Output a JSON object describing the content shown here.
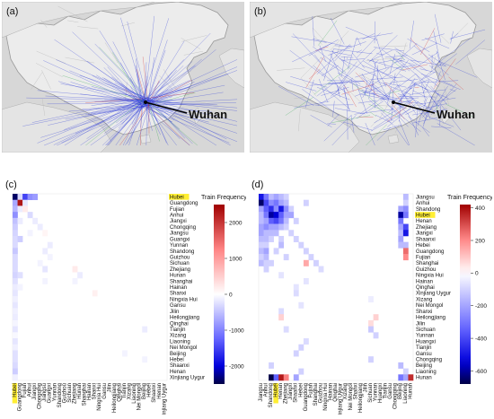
{
  "panels": {
    "a": {
      "label": "(a)",
      "city": "Wuhan"
    },
    "b": {
      "label": "(b)",
      "city": "Wuhan"
    },
    "c": {
      "label": "(c)"
    },
    "d": {
      "label": "(d)"
    }
  },
  "chart_data": [
    {
      "type": "heatmap",
      "panel": "c",
      "colorbar_title": "Train Frequency",
      "colorbar_ticks": [
        2000,
        1000,
        0,
        -1000,
        -2000
      ],
      "colorbar_range": [
        -2500,
        2500
      ],
      "highlight": "Hubei",
      "highlight_color": "#ffee33",
      "rows": [
        "Hubei",
        "Guangdong",
        "Fujian",
        "Anhui",
        "Jiangxi",
        "Chongqing",
        "Jiangsu",
        "Guangxi",
        "Yunnan",
        "Shandong",
        "Guizhou",
        "Sichuan",
        "Zhejiang",
        "Hunan",
        "Shanghai",
        "Hainan",
        "Shanxi",
        "Ningxia Hui",
        "Gansu",
        "Jilin",
        "Heilongjiang",
        "Qinghai",
        "Tianjin",
        "Xizang",
        "Liaoning",
        "Nei Mongol",
        "Beijing",
        "Hebei",
        "Shaanxi",
        "Henan",
        "Xinjiang Uygur"
      ],
      "columns": [
        "Hubei",
        "Guangdong",
        "Fujian",
        "Anhui",
        "Jiangxi",
        "Chongqing",
        "Jiangsu",
        "Guangxi",
        "Yunnan",
        "Shandong",
        "Guizhou",
        "Sichuan",
        "Zhejiang",
        "Hunan",
        "Shanghai",
        "Hainan",
        "Shanxi",
        "Ningxia Hui",
        "Gansu",
        "Jilin",
        "Heilongjiang",
        "Qinghai",
        "Tianjin",
        "Xizang",
        "Liaoning",
        "Nei Mongol",
        "Beijing",
        "Hebei",
        "Shaanxi",
        "Henan",
        "Xinjiang Uygur"
      ],
      "cells": [
        [
          0,
          0,
          -2400
        ],
        [
          0,
          1,
          -300
        ],
        [
          0,
          2,
          -1500
        ],
        [
          0,
          3,
          -900
        ],
        [
          0,
          4,
          -800
        ],
        [
          1,
          0,
          -700
        ],
        [
          1,
          1,
          2300
        ],
        [
          1,
          2,
          -200
        ],
        [
          2,
          0,
          -600
        ],
        [
          2,
          1,
          -150
        ],
        [
          2,
          2,
          200
        ],
        [
          3,
          0,
          -900
        ],
        [
          3,
          3,
          -300
        ],
        [
          4,
          0,
          -500
        ],
        [
          4,
          1,
          -150
        ],
        [
          4,
          4,
          -150
        ],
        [
          5,
          0,
          -400
        ],
        [
          5,
          5,
          -150
        ],
        [
          6,
          0,
          -350
        ],
        [
          6,
          3,
          -100
        ],
        [
          6,
          6,
          100
        ],
        [
          7,
          0,
          -300
        ],
        [
          7,
          1,
          -400
        ],
        [
          8,
          0,
          -300
        ],
        [
          8,
          7,
          -150
        ],
        [
          9,
          0,
          -450
        ],
        [
          9,
          6,
          -150
        ],
        [
          10,
          0,
          -300
        ],
        [
          10,
          7,
          -100
        ],
        [
          11,
          0,
          -300
        ],
        [
          11,
          5,
          -100
        ],
        [
          12,
          0,
          -300
        ],
        [
          12,
          6,
          -200
        ],
        [
          12,
          12,
          200
        ],
        [
          13,
          0,
          -350
        ],
        [
          13,
          1,
          -250
        ],
        [
          13,
          13,
          -150
        ],
        [
          14,
          0,
          -250
        ],
        [
          14,
          6,
          -100
        ],
        [
          14,
          12,
          -100
        ],
        [
          15,
          0,
          -150
        ],
        [
          15,
          1,
          -100
        ],
        [
          16,
          0,
          -200
        ],
        [
          16,
          16,
          150
        ],
        [
          17,
          0,
          -120
        ],
        [
          18,
          0,
          -200
        ],
        [
          19,
          0,
          -120
        ],
        [
          20,
          0,
          -150
        ],
        [
          21,
          0,
          -80
        ],
        [
          22,
          0,
          -200
        ],
        [
          22,
          26,
          -150
        ],
        [
          23,
          0,
          -60
        ],
        [
          24,
          0,
          -200
        ],
        [
          25,
          0,
          -120
        ],
        [
          26,
          0,
          -250
        ],
        [
          26,
          22,
          -100
        ],
        [
          27,
          0,
          -250
        ],
        [
          27,
          26,
          -100
        ],
        [
          28,
          0,
          -300
        ],
        [
          29,
          0,
          -400
        ],
        [
          30,
          0,
          -120
        ]
      ]
    },
    {
      "type": "heatmap",
      "panel": "d",
      "colorbar_title": "Train Frequency",
      "colorbar_ticks": [
        400,
        200,
        0,
        -200,
        -400,
        -600
      ],
      "colorbar_range": [
        -680,
        420
      ],
      "highlight": "Hubei",
      "highlight_color": "#ffee33",
      "rows": [
        "Jiangsu",
        "Anhui",
        "Shandong",
        "Hubei",
        "Henan",
        "Zhejiang",
        "Jiangxi",
        "Shaanxi",
        "Hebei",
        "Guangdong",
        "Fujian",
        "Shanghai",
        "Guizhou",
        "Ningxia Hui",
        "Hainan",
        "Qinghai",
        "Xinjiang Uygur",
        "Xizang",
        "Nei Mongol",
        "Shanxi",
        "Heilongjiang",
        "Jilin",
        "Sichuan",
        "Yunnan",
        "Huangxi",
        "Tianjin",
        "Gansu",
        "Chongqing",
        "Beijing",
        "Liaoning",
        "Hunan"
      ],
      "columns": [
        "Jiangsu",
        "Anhui",
        "Shandong",
        "Hubei",
        "Henan",
        "Zhejiang",
        "Jiangxi",
        "Shaanxi",
        "Hebei",
        "Guangdong",
        "Fujian",
        "Shanghai",
        "Guizhou",
        "Ningxia Hui",
        "Hainan",
        "Qinghai",
        "Xinjiang Uygur",
        "Xizang",
        "Nei Mongol",
        "Shanxi",
        "Heilongjiang",
        "Jilin",
        "Sichuan",
        "Yunnan",
        "Huangxi",
        "Tianjin",
        "Gansu",
        "Chongqing",
        "Beijing",
        "Liaoning",
        "Hunan"
      ],
      "cells": [
        [
          0,
          0,
          -500
        ],
        [
          0,
          1,
          -300
        ],
        [
          0,
          2,
          -150
        ],
        [
          0,
          3,
          -200
        ],
        [
          0,
          4,
          -150
        ],
        [
          0,
          5,
          -100
        ],
        [
          0,
          29,
          -150
        ],
        [
          1,
          0,
          -650
        ],
        [
          1,
          1,
          -400
        ],
        [
          1,
          2,
          -250
        ],
        [
          1,
          3,
          -300
        ],
        [
          1,
          4,
          -200
        ],
        [
          1,
          5,
          -150
        ],
        [
          1,
          9,
          -100
        ],
        [
          1,
          29,
          -100
        ],
        [
          2,
          0,
          -200
        ],
        [
          2,
          1,
          -350
        ],
        [
          2,
          2,
          -450
        ],
        [
          2,
          3,
          -250
        ],
        [
          2,
          4,
          -500
        ],
        [
          2,
          5,
          -250
        ],
        [
          2,
          6,
          -100
        ],
        [
          2,
          28,
          -200
        ],
        [
          2,
          29,
          -250
        ],
        [
          3,
          0,
          -150
        ],
        [
          3,
          1,
          -300
        ],
        [
          3,
          2,
          -600
        ],
        [
          3,
          3,
          -550
        ],
        [
          3,
          4,
          -350
        ],
        [
          3,
          5,
          -200
        ],
        [
          3,
          6,
          -200
        ],
        [
          3,
          28,
          -600
        ],
        [
          3,
          29,
          -300
        ],
        [
          4,
          0,
          -150
        ],
        [
          4,
          1,
          -200
        ],
        [
          4,
          2,
          -350
        ],
        [
          4,
          3,
          -400
        ],
        [
          4,
          4,
          -300
        ],
        [
          4,
          5,
          -150
        ],
        [
          4,
          7,
          -100
        ],
        [
          4,
          28,
          -300
        ],
        [
          5,
          0,
          -200
        ],
        [
          5,
          1,
          -250
        ],
        [
          5,
          2,
          -200
        ],
        [
          5,
          3,
          -200
        ],
        [
          5,
          4,
          -150
        ],
        [
          5,
          5,
          -100
        ],
        [
          5,
          28,
          -200
        ],
        [
          5,
          29,
          -400
        ],
        [
          6,
          0,
          -200
        ],
        [
          6,
          1,
          -150
        ],
        [
          6,
          2,
          -150
        ],
        [
          6,
          3,
          -150
        ],
        [
          6,
          6,
          -100
        ],
        [
          6,
          28,
          -150
        ],
        [
          6,
          29,
          -500
        ],
        [
          7,
          0,
          -150
        ],
        [
          7,
          1,
          -150
        ],
        [
          7,
          2,
          -100
        ],
        [
          7,
          4,
          -100
        ],
        [
          7,
          7,
          -100
        ],
        [
          7,
          28,
          -200
        ],
        [
          8,
          0,
          -100
        ],
        [
          8,
          1,
          -100
        ],
        [
          8,
          4,
          -150
        ],
        [
          8,
          8,
          -100
        ],
        [
          8,
          28,
          -150
        ],
        [
          8,
          29,
          -150
        ],
        [
          9,
          0,
          -150
        ],
        [
          9,
          1,
          -200
        ],
        [
          9,
          3,
          -100
        ],
        [
          9,
          9,
          -100
        ],
        [
          9,
          29,
          250
        ],
        [
          10,
          0,
          -100
        ],
        [
          10,
          1,
          -150
        ],
        [
          10,
          5,
          -100
        ],
        [
          10,
          10,
          -100
        ],
        [
          10,
          29,
          200
        ],
        [
          11,
          0,
          -150
        ],
        [
          11,
          1,
          -100
        ],
        [
          11,
          2,
          -100
        ],
        [
          11,
          9,
          150
        ],
        [
          11,
          11,
          -100
        ],
        [
          12,
          1,
          -100
        ],
        [
          12,
          12,
          -80
        ],
        [
          13,
          4,
          -60
        ],
        [
          14,
          9,
          -60
        ],
        [
          15,
          7,
          -60
        ],
        [
          16,
          7,
          -80
        ],
        [
          17,
          22,
          -40
        ],
        [
          18,
          8,
          -60
        ],
        [
          19,
          4,
          -80
        ],
        [
          20,
          4,
          80
        ],
        [
          20,
          23,
          80
        ],
        [
          21,
          22,
          60
        ],
        [
          22,
          5,
          -80
        ],
        [
          22,
          22,
          -120
        ],
        [
          23,
          23,
          -100
        ],
        [
          24,
          9,
          -80
        ],
        [
          25,
          8,
          -100
        ],
        [
          26,
          7,
          -100
        ],
        [
          27,
          22,
          -100
        ],
        [
          28,
          2,
          -100
        ],
        [
          28,
          28,
          -150
        ],
        [
          29,
          8,
          -100
        ],
        [
          29,
          29,
          -100
        ],
        [
          30,
          2,
          -700
        ],
        [
          30,
          3,
          -350
        ],
        [
          30,
          4,
          380
        ],
        [
          30,
          5,
          220
        ],
        [
          30,
          7,
          -200
        ],
        [
          30,
          28,
          -300
        ],
        [
          30,
          29,
          -200
        ],
        [
          30,
          30,
          350
        ]
      ]
    }
  ]
}
